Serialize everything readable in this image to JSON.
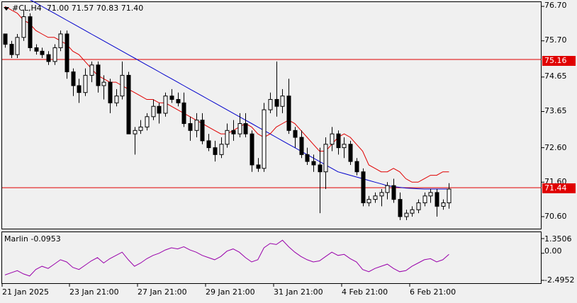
{
  "header": {
    "symbol": "#CL",
    "timeframe": "H4",
    "ohlc": "71.00 71.57 70.83 71.40"
  },
  "indicator": {
    "name": "Marlin",
    "value": "-0.0953",
    "scale_labels": [
      "1.3506",
      "0.00",
      "-2.4952"
    ]
  },
  "price_scale": {
    "labels": [
      "76.70",
      "75.70",
      "74.65",
      "73.65",
      "72.60",
      "71.60",
      "70.60"
    ]
  },
  "horizontal_lines": [
    {
      "price": "75.16",
      "color": "#e00000"
    },
    {
      "price": "71.44",
      "color": "#e00000"
    }
  ],
  "time_axis": {
    "labels": [
      "21 Jan 2025",
      "23 Jan 21:00",
      "27 Jan 21:00",
      "29 Jan 21:00",
      "31 Jan 21:00",
      "4 Feb 21:00",
      "6 Feb 21:00"
    ]
  },
  "colors": {
    "ma_fast": "#e00000",
    "ma_slow": "#0000cc",
    "indicator_line": "#9900aa",
    "candle": "#000000"
  },
  "chart_data": {
    "type": "candlestick",
    "y_range": [
      70.1,
      76.9
    ],
    "candles": [
      [
        75.9,
        75.9,
        75.5,
        75.6
      ],
      [
        75.6,
        75.7,
        75.2,
        75.3
      ],
      [
        75.3,
        75.9,
        75.2,
        75.8
      ],
      [
        75.8,
        76.6,
        75.7,
        76.4
      ],
      [
        76.4,
        76.5,
        75.4,
        75.5
      ],
      [
        75.5,
        75.6,
        75.3,
        75.4
      ],
      [
        75.4,
        75.5,
        75.2,
        75.3
      ],
      [
        75.3,
        75.4,
        75.0,
        75.1
      ],
      [
        75.1,
        75.6,
        75.0,
        75.5
      ],
      [
        75.5,
        76.0,
        75.4,
        75.9
      ],
      [
        75.9,
        76.0,
        74.6,
        74.8
      ],
      [
        74.8,
        74.9,
        74.1,
        74.4
      ],
      [
        74.4,
        74.6,
        73.9,
        74.2
      ],
      [
        74.2,
        74.9,
        74.1,
        74.7
      ],
      [
        74.7,
        75.1,
        74.5,
        75.0
      ],
      [
        75.0,
        75.1,
        74.2,
        74.4
      ],
      [
        74.4,
        74.7,
        74.0,
        74.5
      ],
      [
        74.5,
        74.6,
        73.6,
        73.9
      ],
      [
        73.9,
        74.3,
        73.8,
        74.1
      ],
      [
        74.1,
        75.1,
        74.0,
        74.7
      ],
      [
        74.7,
        74.8,
        73.0,
        73.0
      ],
      [
        73.0,
        73.2,
        72.4,
        73.1
      ],
      [
        73.1,
        73.4,
        73.0,
        73.2
      ],
      [
        73.2,
        73.6,
        73.1,
        73.5
      ],
      [
        73.5,
        74.0,
        73.4,
        73.8
      ],
      [
        73.8,
        73.9,
        73.3,
        73.6
      ],
      [
        73.6,
        74.2,
        73.5,
        74.1
      ],
      [
        74.1,
        74.3,
        73.9,
        74.0
      ],
      [
        74.0,
        74.2,
        73.8,
        73.9
      ],
      [
        73.9,
        74.2,
        73.2,
        73.3
      ],
      [
        73.3,
        73.5,
        72.8,
        73.1
      ],
      [
        73.1,
        73.6,
        72.9,
        73.4
      ],
      [
        73.4,
        73.6,
        72.7,
        72.8
      ],
      [
        72.8,
        73.0,
        72.5,
        72.6
      ],
      [
        72.6,
        72.8,
        72.2,
        72.4
      ],
      [
        72.4,
        72.9,
        72.3,
        72.7
      ],
      [
        72.7,
        73.3,
        72.6,
        73.1
      ],
      [
        73.1,
        73.4,
        72.8,
        73.0
      ],
      [
        73.0,
        73.6,
        72.9,
        73.3
      ],
      [
        73.3,
        73.6,
        72.9,
        73.0
      ],
      [
        73.0,
        73.1,
        71.9,
        72.1
      ],
      [
        72.1,
        72.3,
        71.9,
        72.0
      ],
      [
        72.0,
        73.9,
        71.9,
        73.7
      ],
      [
        73.7,
        74.2,
        73.6,
        74.0
      ],
      [
        74.0,
        75.1,
        73.5,
        73.8
      ],
      [
        73.8,
        74.3,
        73.6,
        74.1
      ],
      [
        74.1,
        74.6,
        73.0,
        73.1
      ],
      [
        73.1,
        73.2,
        72.6,
        72.9
      ],
      [
        72.9,
        73.1,
        72.3,
        72.4
      ],
      [
        72.4,
        72.6,
        72.1,
        72.2
      ],
      [
        72.2,
        72.4,
        71.9,
        72.1
      ],
      [
        72.1,
        72.6,
        70.7,
        71.9
      ],
      [
        71.9,
        72.9,
        71.4,
        72.7
      ],
      [
        72.7,
        73.2,
        72.5,
        73.0
      ],
      [
        73.0,
        73.1,
        72.4,
        72.6
      ],
      [
        72.6,
        72.9,
        72.3,
        72.7
      ],
      [
        72.7,
        72.8,
        72.1,
        72.2
      ],
      [
        72.2,
        72.3,
        71.8,
        71.9
      ],
      [
        71.9,
        72.0,
        70.9,
        71.0
      ],
      [
        71.0,
        71.2,
        70.9,
        71.1
      ],
      [
        71.1,
        71.3,
        71.0,
        71.2
      ],
      [
        71.2,
        71.4,
        70.9,
        71.3
      ],
      [
        71.3,
        71.6,
        71.1,
        71.5
      ],
      [
        71.5,
        71.7,
        71.0,
        71.1
      ],
      [
        71.1,
        71.3,
        70.5,
        70.6
      ],
      [
        70.6,
        70.8,
        70.5,
        70.7
      ],
      [
        70.7,
        70.9,
        70.6,
        70.8
      ],
      [
        70.8,
        71.1,
        70.7,
        71.0
      ],
      [
        71.0,
        71.3,
        70.9,
        71.2
      ],
      [
        71.2,
        71.4,
        71.0,
        71.3
      ],
      [
        71.3,
        71.4,
        70.6,
        70.9
      ],
      [
        70.9,
        71.1,
        70.8,
        71.0
      ],
      [
        71.0,
        71.57,
        70.83,
        71.4
      ]
    ],
    "ma_fast": [
      76.7,
      76.6,
      76.5,
      76.3,
      76.2,
      76.0,
      75.9,
      75.8,
      75.8,
      75.7,
      75.6,
      75.4,
      75.3,
      75.1,
      74.9,
      74.7,
      74.6,
      74.5,
      74.5,
      74.4,
      74.3,
      74.2,
      74.1,
      74.0,
      74.0,
      73.9,
      73.9,
      73.8,
      73.7,
      73.6,
      73.5,
      73.4,
      73.3,
      73.2,
      73.1,
      73.0,
      73.0,
      73.1,
      73.2,
      73.3,
      73.2,
      73.0,
      72.9,
      73.0,
      73.2,
      73.3,
      73.4,
      73.3,
      73.1,
      72.9,
      72.7,
      72.5,
      72.5,
      72.7,
      72.9,
      73.0,
      72.9,
      72.7,
      72.5,
      72.1,
      72.0,
      71.9,
      71.9,
      72.0,
      71.9,
      71.7,
      71.6,
      71.6,
      71.7,
      71.8,
      71.8,
      71.9,
      71.9
    ],
    "ma_slow": [
      77.3,
      77.2,
      77.1,
      77.0,
      76.9,
      76.8,
      76.7,
      76.6,
      76.5,
      76.4,
      76.3,
      76.2,
      76.1,
      76.0,
      75.9,
      75.8,
      75.7,
      75.6,
      75.5,
      75.4,
      75.3,
      75.2,
      75.1,
      75.0,
      74.9,
      74.8,
      74.7,
      74.6,
      74.5,
      74.4,
      74.3,
      74.2,
      74.1,
      74.0,
      73.9,
      73.8,
      73.7,
      73.6,
      73.5,
      73.4,
      73.3,
      73.2,
      73.1,
      73.0,
      72.9,
      72.8,
      72.7,
      72.6,
      72.5,
      72.4,
      72.3,
      72.2,
      72.1,
      72.0,
      71.9,
      71.85,
      71.8,
      71.75,
      71.7,
      71.65,
      71.6,
      71.55,
      71.5,
      71.47,
      71.45,
      71.43,
      71.42,
      71.41,
      71.4,
      71.4,
      71.4,
      71.4,
      71.4
    ],
    "indicator": {
      "range": [
        -2.4952,
        1.3506
      ],
      "values": [
        -2.0,
        -1.8,
        -1.6,
        -1.9,
        -2.1,
        -1.5,
        -1.2,
        -1.4,
        -1.0,
        -0.6,
        -0.8,
        -1.3,
        -1.5,
        -1.1,
        -0.7,
        -0.4,
        -0.9,
        -0.5,
        -0.2,
        0.1,
        -0.6,
        -1.2,
        -0.9,
        -0.5,
        -0.2,
        0.0,
        0.3,
        0.5,
        0.4,
        0.6,
        0.3,
        0.1,
        -0.2,
        -0.4,
        -0.6,
        -0.3,
        0.2,
        0.4,
        0.1,
        -0.4,
        -0.8,
        -0.6,
        0.5,
        0.9,
        0.8,
        1.2,
        0.6,
        0.1,
        -0.3,
        -0.6,
        -0.8,
        -0.7,
        -0.3,
        0.1,
        -0.2,
        -0.1,
        -0.5,
        -0.8,
        -1.5,
        -1.7,
        -1.4,
        -1.2,
        -1.0,
        -1.4,
        -1.7,
        -1.6,
        -1.2,
        -0.9,
        -0.6,
        -0.5,
        -0.8,
        -0.6,
        -0.1
      ]
    }
  }
}
